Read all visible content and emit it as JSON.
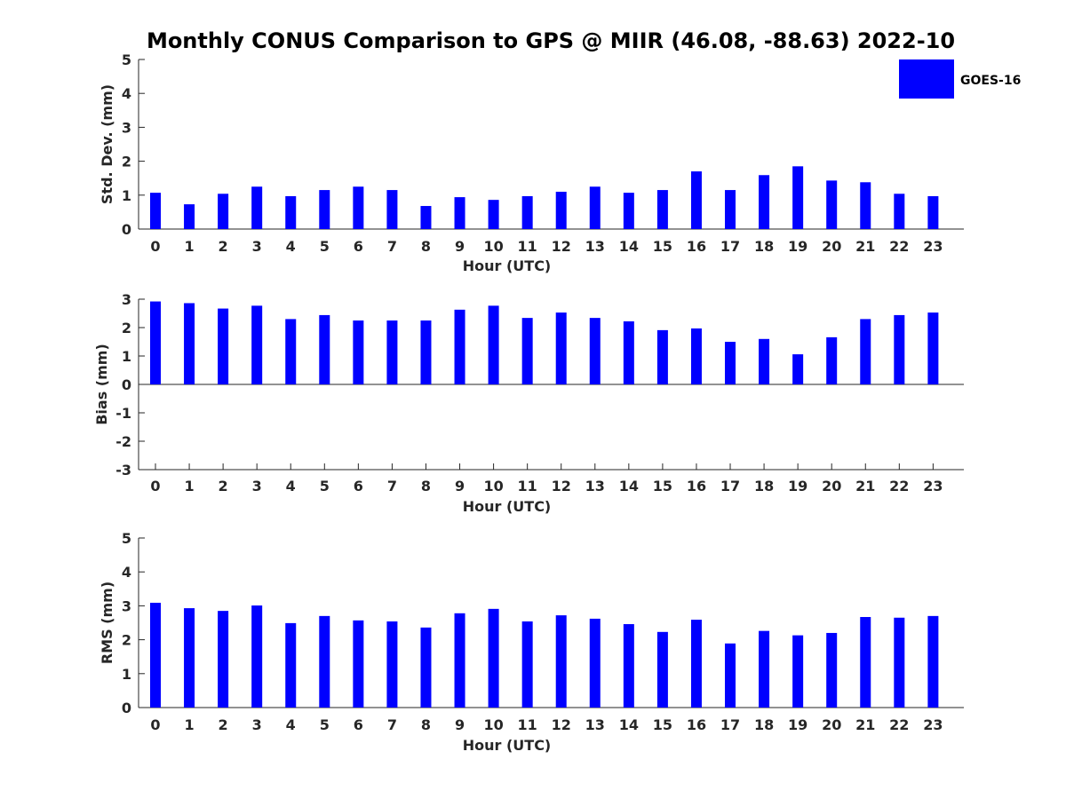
{
  "title": "Monthly CONUS Comparison to GPS @ MIIR (46.08, -88.63) 2022-10",
  "bar_color": "#0000ff",
  "legend": {
    "label": "GOES-16",
    "placement": "top-right"
  },
  "chart_data": [
    {
      "type": "bar",
      "xlabel": "Hour (UTC)",
      "ylabel": "Std. Dev. (mm)",
      "ylim": [
        0,
        5
      ],
      "yticks": [
        0,
        1,
        2,
        3,
        4,
        5
      ],
      "categories": [
        "0",
        "1",
        "2",
        "3",
        "4",
        "5",
        "6",
        "7",
        "8",
        "9",
        "10",
        "11",
        "12",
        "13",
        "14",
        "15",
        "16",
        "17",
        "18",
        "19",
        "20",
        "21",
        "22",
        "23"
      ],
      "series": [
        {
          "name": "GOES-16",
          "values": [
            1.07,
            0.73,
            1.04,
            1.25,
            0.97,
            1.15,
            1.25,
            1.15,
            0.68,
            0.94,
            0.86,
            0.97,
            1.1,
            1.25,
            1.07,
            1.15,
            1.7,
            1.15,
            1.59,
            1.85,
            1.43,
            1.38,
            1.04,
            0.97
          ]
        }
      ]
    },
    {
      "type": "bar",
      "xlabel": "Hour (UTC)",
      "ylabel": "Bias (mm)",
      "ylim": [
        -3,
        3
      ],
      "yticks": [
        -3,
        -2,
        -1,
        0,
        1,
        2,
        3
      ],
      "categories": [
        "0",
        "1",
        "2",
        "3",
        "4",
        "5",
        "6",
        "7",
        "8",
        "9",
        "10",
        "11",
        "12",
        "13",
        "14",
        "15",
        "16",
        "17",
        "18",
        "19",
        "20",
        "21",
        "22",
        "23"
      ],
      "series": [
        {
          "name": "GOES-16",
          "values": [
            2.92,
            2.86,
            2.67,
            2.77,
            2.3,
            2.44,
            2.25,
            2.25,
            2.25,
            2.63,
            2.77,
            2.34,
            2.53,
            2.34,
            2.22,
            1.91,
            1.97,
            1.5,
            1.6,
            1.06,
            1.66,
            2.3,
            2.44,
            2.53
          ]
        }
      ]
    },
    {
      "type": "bar",
      "xlabel": "Hour (UTC)",
      "ylabel": "RMS (mm)",
      "ylim": [
        0,
        5
      ],
      "yticks": [
        0,
        1,
        2,
        3,
        4,
        5
      ],
      "categories": [
        "0",
        "1",
        "2",
        "3",
        "4",
        "5",
        "6",
        "7",
        "8",
        "9",
        "10",
        "11",
        "12",
        "13",
        "14",
        "15",
        "16",
        "17",
        "18",
        "19",
        "20",
        "21",
        "22",
        "23"
      ],
      "series": [
        {
          "name": "GOES-16",
          "values": [
            3.09,
            2.93,
            2.85,
            3.01,
            2.49,
            2.7,
            2.57,
            2.54,
            2.36,
            2.78,
            2.91,
            2.54,
            2.72,
            2.62,
            2.46,
            2.23,
            2.59,
            1.89,
            2.26,
            2.13,
            2.2,
            2.67,
            2.65,
            2.7
          ]
        }
      ]
    }
  ]
}
